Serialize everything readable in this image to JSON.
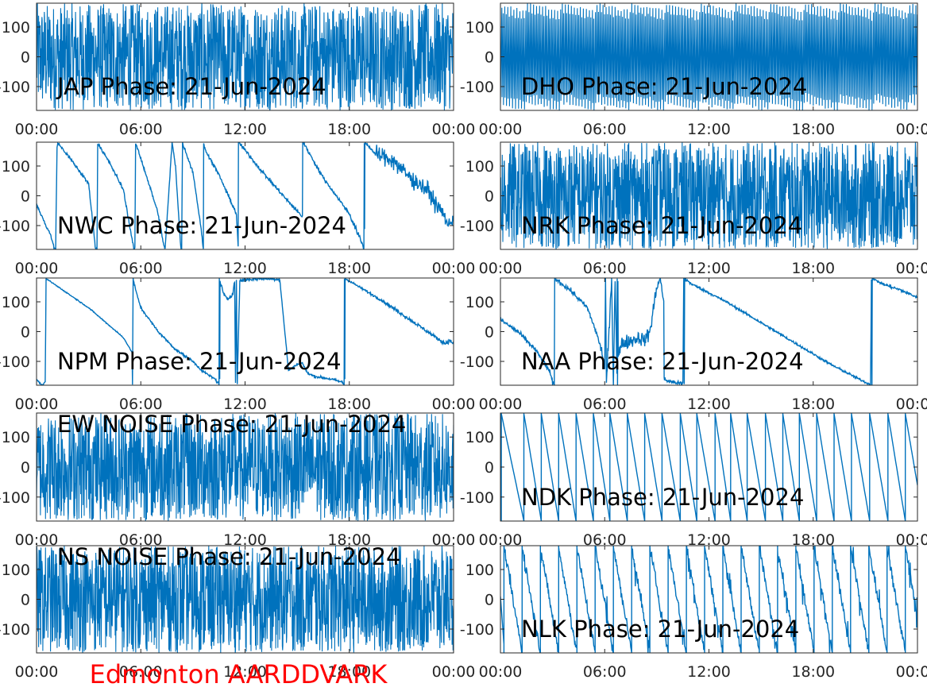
{
  "figure": {
    "footer": "Edmonton AARDDVARK",
    "footer_color": "#ff0000",
    "line_color": "#0072bd",
    "axis_color": "#262626"
  },
  "chart_data": [
    {
      "type": "line",
      "title": "JAP Phase: 21-Jun-2024",
      "xlabel": "",
      "ylabel": "",
      "x_ticks": [
        "00:00",
        "06:00",
        "12:00",
        "18:00",
        "00:00"
      ],
      "y_ticks": [
        "100",
        "0",
        "-100"
      ],
      "ylim": [
        -180,
        180
      ],
      "xlim": [
        "00:00",
        "24:00"
      ],
      "grid": false,
      "pattern": "dense_noise",
      "y": []
    },
    {
      "type": "line",
      "title": "DHO Phase: 21-Jun-2024",
      "xlabel": "",
      "ylabel": "",
      "x_ticks": [
        "00:00",
        "06:00",
        "12:00",
        "18:00",
        "00:00"
      ],
      "y_ticks": [
        "100",
        "0",
        "-100"
      ],
      "ylim": [
        -180,
        180
      ],
      "xlim": [
        "00:00",
        "24:00"
      ],
      "grid": false,
      "pattern": "fast_wrap",
      "y": []
    },
    {
      "type": "line",
      "title": "NWC Phase: 21-Jun-2024",
      "xlabel": "",
      "ylabel": "",
      "x_ticks": [
        "00:00",
        "06:00",
        "12:00",
        "18:00",
        "00:00"
      ],
      "y_ticks": [
        "100",
        "0",
        "-100"
      ],
      "ylim": [
        -180,
        180
      ],
      "xlim": [
        "00:00",
        "24:00"
      ],
      "grid": false,
      "x": [
        0,
        0.2,
        0.5,
        0.8,
        0.9,
        1.0,
        1.1,
        1.18,
        1.22,
        2.0,
        3.0,
        3.4,
        3.48,
        3.52,
        4.3,
        5.0,
        5.6,
        5.66,
        5.7,
        6.2,
        7.0,
        7.3,
        7.4,
        7.8,
        8.0,
        8.3,
        8.35,
        8.4,
        9.0,
        9.4,
        9.6,
        9.62,
        9.66,
        10.5,
        11.5,
        11.6,
        11.62,
        11.66,
        13.0,
        14.5,
        15.3,
        15.32,
        15.36,
        16.5,
        18.0,
        18.8,
        18.84,
        18.86,
        18.88,
        18.9,
        18.94,
        19.5,
        20.5,
        21.5,
        22.5,
        23.0,
        23.4,
        23.7,
        24
      ],
      "y": [
        -30,
        -55,
        -95,
        -130,
        -150,
        -175,
        -178,
        160,
        178,
        120,
        40,
        -180,
        -178,
        178,
        100,
        20,
        -180,
        -178,
        178,
        90,
        -60,
        -160,
        -178,
        178,
        100,
        -175,
        -178,
        178,
        80,
        -80,
        -178,
        178,
        160,
        70,
        -60,
        -170,
        178,
        178,
        80,
        -20,
        -70,
        178,
        178,
        60,
        -60,
        -170,
        -178,
        178,
        -150,
        175,
        178,
        140,
        120,
        60,
        20,
        -30,
        -60,
        -100,
        -75
      ],
      "noise": [
        3,
        3,
        3,
        3,
        3,
        3,
        3,
        3,
        3,
        3,
        3,
        3,
        3,
        3,
        3,
        3,
        3,
        3,
        3,
        3,
        3,
        3,
        3,
        3,
        3,
        3,
        3,
        3,
        3,
        3,
        3,
        3,
        3,
        3,
        3,
        3,
        3,
        3,
        3,
        3,
        3,
        3,
        3,
        3,
        5,
        6,
        0,
        0,
        60,
        0,
        0,
        14,
        16,
        14,
        14,
        10,
        10,
        10,
        10
      ]
    },
    {
      "type": "line",
      "title": "NRK Phase: 21-Jun-2024",
      "xlabel": "",
      "ylabel": "",
      "x_ticks": [
        "00:00",
        "06:00",
        "12:00",
        "18:00",
        "00:00"
      ],
      "y_ticks": [
        "100",
        "0",
        "-100"
      ],
      "ylim": [
        -180,
        180
      ],
      "xlim": [
        "00:00",
        "24:00"
      ],
      "grid": false,
      "pattern": "dense_noise",
      "y": []
    },
    {
      "type": "line",
      "title": "NPM Phase: 21-Jun-2024",
      "xlabel": "",
      "ylabel": "",
      "x_ticks": [
        "00:00",
        "06:00",
        "12:00",
        "18:00",
        "00:00"
      ],
      "y_ticks": [
        "100",
        "0",
        "-100"
      ],
      "ylim": [
        -180,
        180
      ],
      "xlim": [
        "00:00",
        "24:00"
      ],
      "grid": false,
      "x": [
        0,
        0.15,
        0.3,
        0.5,
        0.55,
        1.0,
        2.0,
        3.0,
        4.0,
        5.0,
        5.5,
        5.52,
        5.56,
        5.7,
        6.0,
        7.0,
        8.0,
        9.0,
        9.5,
        10.0,
        10.3,
        10.4,
        10.5,
        10.52,
        10.54,
        10.56,
        10.8,
        11.0,
        11.2,
        11.3,
        11.4,
        11.45,
        11.5,
        11.55,
        11.7,
        12.0,
        13.0,
        14.0,
        14.5,
        15.0,
        15.3,
        15.6,
        16.0,
        17.0,
        17.6,
        17.7,
        17.72,
        17.74,
        17.76,
        18.0,
        20.0,
        22.0,
        23.5,
        23.8,
        24
      ],
      "y": [
        -160,
        -170,
        -180,
        -170,
        178,
        160,
        120,
        80,
        30,
        -20,
        -70,
        -178,
        178,
        140,
        80,
        0,
        -60,
        -100,
        -130,
        -150,
        -160,
        -170,
        -175,
        178,
        -160,
        170,
        120,
        110,
        120,
        130,
        170,
        -170,
        175,
        -175,
        170,
        175,
        178,
        175,
        -130,
        -110,
        -105,
        -140,
        -150,
        -160,
        -170,
        -178,
        178,
        -160,
        178,
        170,
        100,
        20,
        -40,
        -30,
        -40
      ],
      "noise": [
        1,
        1,
        1,
        1,
        1,
        1,
        1,
        1,
        1,
        1,
        2,
        2,
        2,
        2,
        2,
        2,
        2,
        2,
        2,
        2,
        3,
        3,
        3,
        3,
        3,
        3,
        3,
        3,
        3,
        3,
        3,
        3,
        3,
        3,
        3,
        3,
        2,
        2,
        2,
        2,
        2,
        2,
        2,
        2,
        2,
        2,
        2,
        2,
        2,
        2,
        3,
        3,
        3,
        3,
        3
      ]
    },
    {
      "type": "line",
      "title": "NAA Phase: 21-Jun-2024",
      "xlabel": "",
      "ylabel": "",
      "x_ticks": [
        "00:00",
        "06:00",
        "12:00",
        "18:00",
        "00:00"
      ],
      "y_ticks": [
        "100",
        "0",
        "-100"
      ],
      "ylim": [
        -180,
        180
      ],
      "xlim": [
        "00:00",
        "24:00"
      ],
      "grid": false,
      "x": [
        0,
        1.0,
        2.0,
        2.8,
        3.0,
        3.1,
        3.12,
        3.14,
        4.0,
        5.0,
        5.5,
        5.8,
        6.0,
        6.05,
        6.1,
        6.4,
        6.5,
        6.6,
        6.7,
        6.72,
        6.74,
        6.76,
        6.78,
        7.0,
        7.5,
        8.0,
        8.3,
        8.6,
        9.0,
        9.2,
        9.4,
        9.42,
        9.44,
        9.6,
        10.0,
        10.5,
        10.55,
        10.58,
        10.6,
        11.0,
        13.0,
        15.0,
        17.0,
        19.0,
        21.0,
        21.3,
        21.35,
        21.38,
        21.4,
        21.45,
        21.5,
        22.0,
        23.0,
        24
      ],
      "y": [
        40,
        0,
        -60,
        -130,
        -170,
        -180,
        178,
        178,
        140,
        80,
        0,
        -60,
        -120,
        178,
        -178,
        178,
        -178,
        178,
        -120,
        178,
        -178,
        178,
        -80,
        -40,
        -30,
        -20,
        -30,
        0,
        150,
        178,
        100,
        -160,
        -160,
        -165,
        -170,
        -175,
        178,
        -178,
        178,
        160,
        100,
        30,
        -40,
        -110,
        -170,
        -178,
        178,
        -178,
        178,
        178,
        175,
        160,
        140,
        115
      ],
      "noise": [
        4,
        4,
        4,
        4,
        4,
        4,
        4,
        4,
        4,
        4,
        6,
        10,
        12,
        12,
        12,
        12,
        12,
        12,
        12,
        12,
        12,
        12,
        12,
        12,
        12,
        12,
        12,
        12,
        6,
        6,
        4,
        4,
        4,
        4,
        3,
        3,
        3,
        3,
        3,
        2,
        2,
        2,
        2,
        2,
        2,
        2,
        2,
        2,
        2,
        2,
        2,
        3,
        3,
        3
      ]
    },
    {
      "type": "line",
      "title": "EW NOISE Phase: 21-Jun-2024",
      "xlabel": "",
      "ylabel": "",
      "x_ticks": [
        "00:00",
        "06:00",
        "12:00",
        "18:00",
        "00:00"
      ],
      "y_ticks": [
        "100",
        "0",
        "-100"
      ],
      "ylim": [
        -180,
        180
      ],
      "xlim": [
        "00:00",
        "24:00"
      ],
      "grid": false,
      "pattern": "dense_noise",
      "y": []
    },
    {
      "type": "line",
      "title": "NDK Phase: 21-Jun-2024",
      "xlabel": "",
      "ylabel": "",
      "x_ticks": [
        "00:00",
        "06:00",
        "12:00",
        "18:00",
        "00:00"
      ],
      "y_ticks": [
        "100",
        "0",
        "-100"
      ],
      "ylim": [
        -180,
        180
      ],
      "xlim": [
        "00:00",
        "24:00"
      ],
      "grid": false,
      "pattern": "sawtooth",
      "wrap_hours": [
        0.05,
        1.35,
        2.35,
        3.35,
        4.35,
        5.35,
        6.3,
        7.3,
        8.3,
        9.3,
        10.35,
        11.3,
        12.35,
        13.25,
        14.2,
        15.25,
        16.25,
        17.2,
        18.2,
        19.2,
        20.2,
        21.25,
        22.3,
        23.3
      ],
      "y": []
    },
    {
      "type": "line",
      "title": "NS NOISE Phase: 21-Jun-2024",
      "xlabel": "",
      "ylabel": "",
      "x_ticks": [
        "00:00",
        "06:00",
        "12:00",
        "18:00",
        "00:00"
      ],
      "y_ticks": [
        "100",
        "0",
        "-100"
      ],
      "ylim": [
        -180,
        180
      ],
      "xlim": [
        "00:00",
        "24:00"
      ],
      "grid": false,
      "pattern": "dense_noise",
      "y": []
    },
    {
      "type": "line",
      "title": "NLK Phase: 21-Jun-2024",
      "xlabel": "",
      "ylabel": "",
      "x_ticks": [
        "00:00",
        "06:00",
        "12:00",
        "18:00",
        "00:00"
      ],
      "y_ticks": [
        "100",
        "0",
        "-100"
      ],
      "ylim": [
        -180,
        180
      ],
      "xlim": [
        "00:00",
        "24:00"
      ],
      "grid": false,
      "pattern": "noisy_sawtooth",
      "wrap_hours": [
        0.2,
        1.25,
        2.3,
        3.35,
        4.4,
        5.45,
        6.5,
        7.55,
        8.6,
        9.65,
        10.7,
        11.75,
        12.8,
        13.85,
        14.9,
        15.95,
        17.0,
        18.05,
        19.1,
        20.15,
        21.2,
        22.25,
        23.3
      ],
      "y": []
    }
  ]
}
